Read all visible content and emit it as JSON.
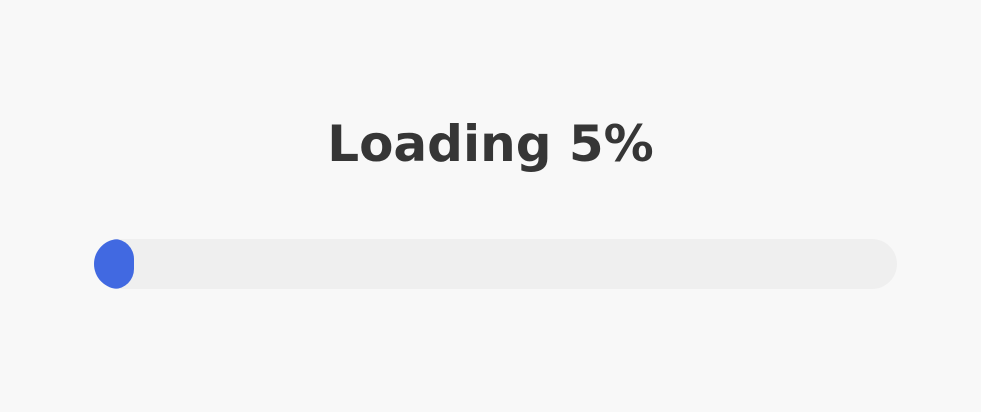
{
  "loading": {
    "label": "Loading 5%",
    "progress_percent": 5
  },
  "colors": {
    "background": "#f8f8f8",
    "text": "#363636",
    "track": "#efefef",
    "fill": "#4169e1"
  }
}
